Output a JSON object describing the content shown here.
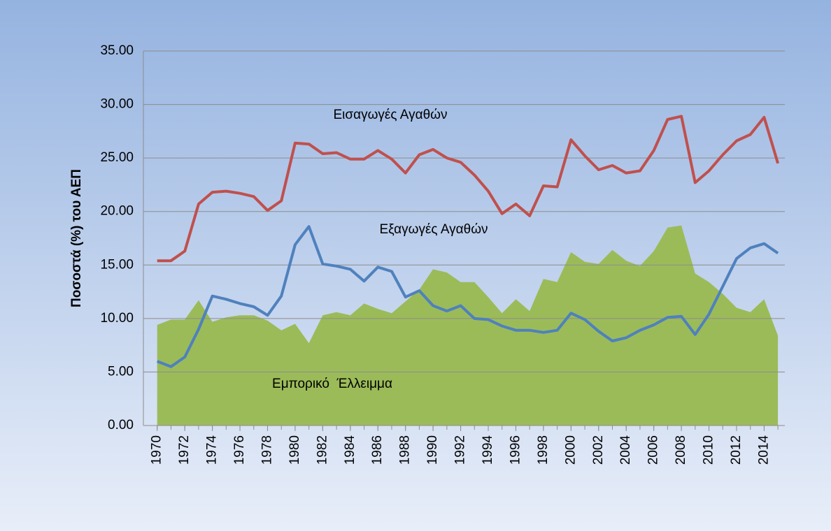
{
  "chart_data": {
    "type": "line",
    "y_label": "Ποσοστά (%) του ΑΕΠ",
    "x": [
      1970,
      1971,
      1972,
      1973,
      1974,
      1975,
      1976,
      1977,
      1978,
      1979,
      1980,
      1981,
      1982,
      1983,
      1984,
      1985,
      1986,
      1987,
      1988,
      1989,
      1990,
      1991,
      1992,
      1993,
      1994,
      1995,
      1996,
      1997,
      1998,
      1999,
      2000,
      2001,
      2002,
      2003,
      2004,
      2005,
      2006,
      2007,
      2008,
      2009,
      2010,
      2011,
      2012,
      2013,
      2014,
      2015
    ],
    "series": [
      {
        "name": "Εμπορικό  Έλλειμμα",
        "type": "area",
        "color": "#9bbb59",
        "values": [
          9.4,
          9.9,
          9.9,
          11.7,
          9.7,
          10.1,
          10.3,
          10.3,
          9.8,
          8.9,
          9.5,
          7.7,
          10.3,
          10.6,
          10.3,
          11.4,
          10.9,
          10.5,
          11.6,
          12.7,
          14.6,
          14.3,
          13.4,
          13.4,
          12.0,
          10.5,
          11.8,
          10.7,
          13.7,
          13.4,
          16.2,
          15.3,
          15.1,
          16.4,
          15.4,
          14.9,
          16.3,
          18.5,
          18.7,
          14.2,
          13.4,
          12.3,
          11.0,
          10.6,
          11.8,
          8.4
        ]
      },
      {
        "name": "Εισαγωγές Αγαθών",
        "type": "line",
        "color": "#c0504d",
        "values": [
          15.4,
          15.4,
          16.3,
          20.7,
          21.8,
          21.9,
          21.7,
          21.4,
          20.1,
          21.0,
          26.4,
          26.3,
          25.4,
          25.5,
          24.9,
          24.9,
          25.7,
          24.9,
          23.6,
          25.3,
          25.8,
          25.0,
          24.6,
          23.4,
          21.9,
          19.8,
          20.7,
          19.6,
          22.4,
          22.3,
          26.7,
          25.2,
          23.9,
          24.3,
          23.6,
          23.8,
          25.7,
          28.6,
          28.9,
          22.7,
          23.8,
          25.3,
          26.6,
          27.2,
          28.8,
          24.5
        ]
      },
      {
        "name": "Εξαγωγές Αγαθών",
        "type": "line",
        "color": "#4f81bd",
        "values": [
          6.0,
          5.5,
          6.4,
          9.0,
          12.1,
          11.8,
          11.4,
          11.1,
          10.3,
          12.1,
          16.9,
          18.6,
          15.1,
          14.9,
          14.6,
          13.5,
          14.8,
          14.4,
          12.0,
          12.6,
          11.2,
          10.7,
          11.2,
          10.0,
          9.9,
          9.3,
          8.9,
          8.9,
          8.7,
          8.9,
          10.5,
          9.9,
          8.8,
          7.9,
          8.2,
          8.9,
          9.4,
          10.1,
          10.2,
          8.5,
          10.4,
          13.0,
          15.6,
          16.6,
          17.0,
          16.1
        ]
      }
    ],
    "xlim": [
      1969,
      2015.5
    ],
    "xticks": [
      1970,
      1972,
      1974,
      1976,
      1978,
      1980,
      1982,
      1984,
      1986,
      1988,
      1990,
      1992,
      1994,
      1996,
      1998,
      2000,
      2002,
      2004,
      2006,
      2008,
      2010,
      2012,
      2014
    ],
    "ylim": [
      0,
      35
    ],
    "yticks": [
      {
        "value": 0,
        "label": "0.00"
      },
      {
        "value": 5,
        "label": "5.00"
      },
      {
        "value": 10,
        "label": "10.00"
      },
      {
        "value": 15,
        "label": "15.00"
      },
      {
        "value": 20,
        "label": "20.00"
      },
      {
        "value": 25,
        "label": "25.00"
      },
      {
        "value": 30,
        "label": "30.00"
      },
      {
        "value": 35,
        "label": "35.00"
      }
    ],
    "grid": true
  }
}
